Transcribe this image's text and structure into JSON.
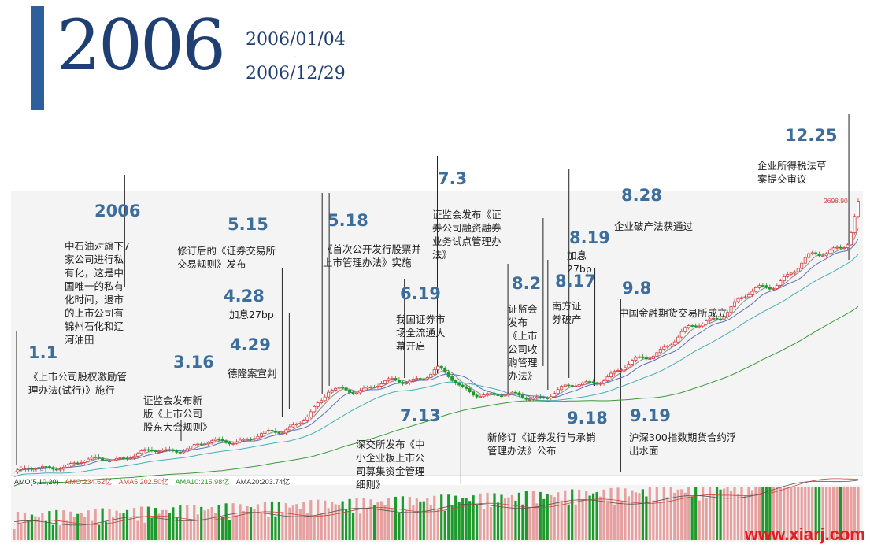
{
  "header": {
    "year": "2006",
    "start_date": "2006/01/04",
    "separator": "-",
    "end_date": "2006/12/29"
  },
  "annotations": [
    {
      "id": "a1",
      "date": "1.1",
      "text": "《上市公司股权激励管\n理办法(试行)》施行"
    },
    {
      "id": "a2",
      "date": "2006",
      "text": "中石油对旗下7\n家公司进行私\n有化，这是中\n国唯一的私有\n化时间，退市\n的上市公司有\n锦州石化和辽\n河油田"
    },
    {
      "id": "a3",
      "date": "3.16",
      "text": "证监会发布新\n版《上市公司\n股东大会规则》"
    },
    {
      "id": "a4",
      "date": "5.15",
      "text": "修订后的《证券交易所\n交易规则》发布"
    },
    {
      "id": "a5",
      "date": "4.28",
      "text": "加息27bp"
    },
    {
      "id": "a6",
      "date": "4.29",
      "text": "德隆案宣判"
    },
    {
      "id": "a7",
      "date": "5.18",
      "text": "《首次公开发行股票并\n上市管理办法》实施"
    },
    {
      "id": "a8",
      "date": "6.19",
      "text": "我国证券市\n场全流通大\n幕开启"
    },
    {
      "id": "a9",
      "date": "7.3",
      "text": "证监会发布《证\n券公司融资融券\n业务试点管理办\n法》"
    },
    {
      "id": "a10",
      "date": "7.13",
      "text": "深交所发布《中\n小企业板上市公\n司募集资金管理\n细则》"
    },
    {
      "id": "a11",
      "date": "8.2",
      "text": "证监会\n发布\n《上市\n公司收\n购管理\n办法》"
    },
    {
      "id": "a12",
      "date": "8.19",
      "text": "加息\n27bp"
    },
    {
      "id": "a13",
      "date": "8.17",
      "text": "南方证\n券破产"
    },
    {
      "id": "a14",
      "date": "8.28",
      "text": "企业破产法获通过"
    },
    {
      "id": "a15",
      "date": "9.8",
      "text": "中国金融期货交易所成立"
    },
    {
      "id": "a16",
      "date": "9.18",
      "text": "新修订《证券发行与承销\n管理办法》公布"
    },
    {
      "id": "a17",
      "date": "9.19",
      "text": "沪深300指数期货合约浮\n出水面"
    },
    {
      "id": "a18",
      "date": "12.25",
      "text": "企业所得税法草\n案提交审议"
    }
  ],
  "indicator": {
    "name": "AMO(5,10,20)",
    "amo": "AMO:234.62亿",
    "ama5": "AMA5:202.50亿",
    "ama10": "AMA10:215.98亿",
    "ama20": "AMA20:203.74亿"
  },
  "price_high_label": "2698.90",
  "price_low_label": "1161.91",
  "watermark": "www.xiarj.com",
  "colors": {
    "accent": "#2d5f9a",
    "title": "#1f3f73",
    "annotation_date": "#3d6d9a",
    "up": "#d23c3c",
    "down": "#1e9a2c",
    "ma5": "#8a8a8a",
    "ma10": "#5a6fc0",
    "ma20": "#46b0b8",
    "ma60": "#3a9a3a",
    "watermark": "#e31b23"
  },
  "chart_data": {
    "type": "line",
    "x": [
      "2006-01-04",
      "2006-03-16",
      "2006-04-28",
      "2006-05-15",
      "2006-05-18",
      "2006-06-19",
      "2006-07-03",
      "2006-07-13",
      "2006-08-02",
      "2006-08-17",
      "2006-08-28",
      "2006-09-08",
      "2006-09-19",
      "2006-12-25",
      "2006-12-29"
    ],
    "series": [
      {
        "name": "close",
        "values": [
          1163,
          1300,
          1390,
          1560,
          1620,
          1680,
          1750,
          1640,
          1590,
          1600,
          1640,
          1690,
          1740,
          2500,
          2676
        ]
      }
    ],
    "ylim": [
      1161.91,
      2698.9
    ],
    "volume_indicator": "AMO(5,10,20)"
  }
}
